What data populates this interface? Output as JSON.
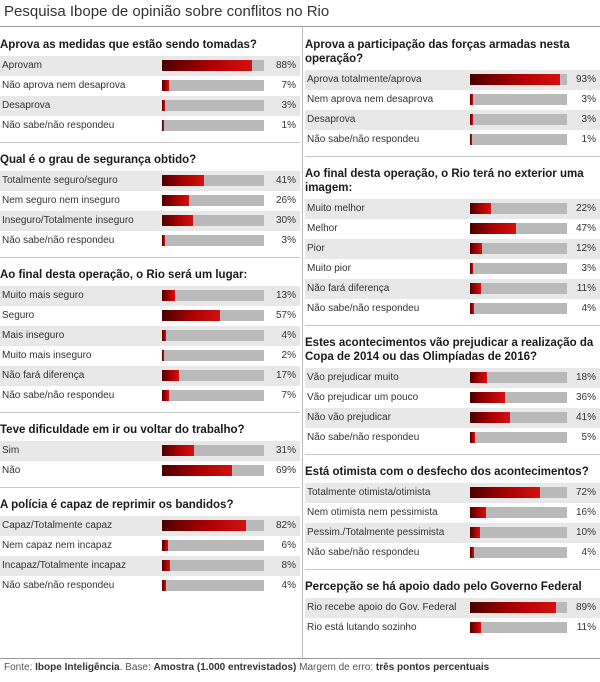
{
  "title": "Pesquisa Ibope de opinião sobre conflitos no Rio",
  "footer": {
    "source_label": "Fonte:",
    "source": "Ibope Inteligência",
    "base_label": ". Base:",
    "base": "Amostra (1.000 entrevistados)",
    "margin_label": "Margem de erro:",
    "margin": "três pontos percentuais"
  },
  "chart_data": [
    {
      "type": "bar",
      "title": "Aprova as medidas que estão sendo tomadas?",
      "categories": [
        "Aprovam",
        "Não aprova nem desaprova",
        "Desaprova",
        "Não sabe/não respondeu"
      ],
      "values": [
        88,
        7,
        3,
        1
      ],
      "labels": [
        "88%",
        "7%",
        "3%",
        "1%"
      ],
      "unit": "%",
      "xlim": [
        0,
        100
      ]
    },
    {
      "type": "bar",
      "title": "Qual é o grau de segurança obtido?",
      "categories": [
        "Totalmente seguro/seguro",
        "Nem seguro nem inseguro",
        "Inseguro/Totalmente inseguro",
        "Não sabe/não respondeu"
      ],
      "values": [
        41,
        26,
        30,
        3
      ],
      "labels": [
        "41%",
        "26%",
        "30%",
        "3%"
      ],
      "unit": "%",
      "xlim": [
        0,
        100
      ]
    },
    {
      "type": "bar",
      "title": "Ao final desta operação, o Rio será um lugar:",
      "categories": [
        "Muito mais seguro",
        "Seguro",
        "Mais inseguro",
        "Muito mais inseguro",
        "Não fará diferença",
        "Não sabe/não respondeu"
      ],
      "values": [
        13,
        57,
        4,
        2,
        17,
        7
      ],
      "labels": [
        "13%",
        "57%",
        "4%",
        "2%",
        "17%",
        "7%"
      ],
      "unit": "%",
      "xlim": [
        0,
        100
      ]
    },
    {
      "type": "bar",
      "title": "Teve dificuldade em ir ou voltar do trabalho?",
      "categories": [
        "Sim",
        "Não"
      ],
      "values": [
        31,
        69
      ],
      "labels": [
        "31%",
        "69%"
      ],
      "unit": "%",
      "xlim": [
        0,
        100
      ]
    },
    {
      "type": "bar",
      "title": "A polícia é capaz de reprimir os bandidos?",
      "categories": [
        "Capaz/Totalmente capaz",
        "Nem capaz nem incapaz",
        "Incapaz/Totalmente incapaz",
        "Não sabe/não respondeu"
      ],
      "values": [
        82,
        6,
        8,
        4
      ],
      "labels": [
        "82%",
        "6%",
        "8%",
        "4%"
      ],
      "unit": "%",
      "xlim": [
        0,
        100
      ]
    },
    {
      "type": "bar",
      "title": "Aprova a participação das forças armadas nesta operação?",
      "categories": [
        "Aprova totalmente/aprova",
        "Nem aprova nem desaprova",
        "Desaprova",
        "Não sabe/não respondeu"
      ],
      "values": [
        93,
        3,
        3,
        1
      ],
      "labels": [
        "93%",
        "3%",
        "3%",
        "1%"
      ],
      "unit": "%",
      "xlim": [
        0,
        100
      ]
    },
    {
      "type": "bar",
      "title": "Ao final desta operação, o Rio terá no exterior uma imagem:",
      "categories": [
        "Muito melhor",
        "Melhor",
        "Pior",
        "Muito pior",
        "Não fará diferença",
        "Não sabe/não respondeu"
      ],
      "values": [
        22,
        47,
        12,
        3,
        11,
        4
      ],
      "labels": [
        "22%",
        "47%",
        "12%",
        "3%",
        "11%",
        "4%"
      ],
      "unit": "%",
      "xlim": [
        0,
        100
      ]
    },
    {
      "type": "bar",
      "title": "Estes acontecimentos vão prejudicar a realização da Copa de 2014 ou das Olimpíadas de 2016?",
      "categories": [
        "Vão prejudicar muito",
        "Vão prejudicar um pouco",
        "Não vão prejudicar",
        "Não sabe/não respondeu"
      ],
      "values": [
        18,
        36,
        41,
        5
      ],
      "labels": [
        "18%",
        "36%",
        "41%",
        "5%"
      ],
      "unit": "%",
      "xlim": [
        0,
        100
      ]
    },
    {
      "type": "bar",
      "title": "Está otimista com o desfecho dos acontecimentos?",
      "categories": [
        "Totalmente otimista/otimista",
        "Nem otimista nem pessimista",
        "Pessim./Totalmente pessimista",
        "Não sabe/não respondeu"
      ],
      "values": [
        72,
        16,
        10,
        4
      ],
      "labels": [
        "72%",
        "16%",
        "10%",
        "4%"
      ],
      "unit": "%",
      "xlim": [
        0,
        100
      ]
    },
    {
      "type": "bar",
      "title": "Percepção se há apoio dado pelo Governo Federal",
      "categories": [
        "Rio recebe apoio do Gov. Federal",
        "Rio está lutando sozinho"
      ],
      "values": [
        89,
        11
      ],
      "labels": [
        "89%",
        "11%"
      ],
      "unit": "%",
      "xlim": [
        0,
        100
      ]
    }
  ],
  "colors": {
    "bar_dark": "#4a0000",
    "bar_mid": "#a80000",
    "bar_light": "#d51010",
    "track": "#b9b9b9",
    "row_shade": "#e8e8e8"
  }
}
